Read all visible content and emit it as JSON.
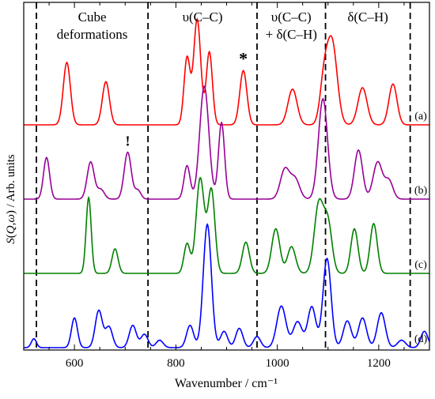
{
  "chart_data": {
    "type": "line",
    "title": "",
    "xlabel": "Wavenumber / cm⁻¹",
    "ylabel": "S(Q,ω) / Arb. units",
    "xlim": [
      500,
      1300
    ],
    "xticks": [
      600,
      800,
      1000,
      1200
    ],
    "xtick_labels": [
      "600",
      "800",
      "1000",
      "1200"
    ],
    "grid": false,
    "legend": "none",
    "region_boundaries_cm1": [
      525,
      745,
      960,
      1095,
      1262
    ],
    "region_labels": [
      {
        "lines": [
          "Cube",
          "deformations"
        ]
      },
      {
        "lines": [
          "υ(C–C)"
        ]
      },
      {
        "lines": [
          "υ(C–C)",
          "+ δ(C–H)"
        ]
      },
      {
        "lines": [
          "δ(C–H)"
        ]
      }
    ],
    "annotations": [
      {
        "text": "*",
        "x": 933,
        "series_index": 0
      },
      {
        "text": "!",
        "x": 705,
        "series_index": 1
      }
    ],
    "series": [
      {
        "tag": "(a)",
        "color": "#ff0000",
        "offset": 3,
        "peaks": [
          [
            585,
            0.84,
            7
          ],
          [
            662,
            0.58,
            7
          ],
          [
            822,
            0.9,
            6
          ],
          [
            842,
            1.42,
            7
          ],
          [
            866,
            0.98,
            6
          ],
          [
            933,
            0.73,
            7
          ],
          [
            1030,
            0.48,
            9
          ],
          [
            1092,
            0.55,
            8
          ],
          [
            1108,
            1.1,
            10
          ],
          [
            1168,
            0.5,
            9
          ],
          [
            1228,
            0.55,
            8
          ]
        ]
      },
      {
        "tag": "(b)",
        "color": "#990099",
        "offset": 2,
        "peaks": [
          [
            545,
            0.56,
            6
          ],
          [
            632,
            0.5,
            7
          ],
          [
            652,
            0.13,
            7
          ],
          [
            705,
            0.63,
            7
          ],
          [
            725,
            0.12,
            6
          ],
          [
            822,
            0.45,
            6
          ],
          [
            856,
            1.52,
            9
          ],
          [
            890,
            1.03,
            6
          ],
          [
            1015,
            0.4,
            9
          ],
          [
            1035,
            0.27,
            9
          ],
          [
            1090,
            1.35,
            9
          ],
          [
            1160,
            0.66,
            8
          ],
          [
            1198,
            0.5,
            9
          ],
          [
            1220,
            0.25,
            8
          ]
        ]
      },
      {
        "tag": "(c)",
        "color": "#008000",
        "offset": 1,
        "peaks": [
          [
            628,
            1.02,
            5
          ],
          [
            680,
            0.33,
            6
          ],
          [
            822,
            0.4,
            6
          ],
          [
            848,
            1.28,
            8
          ],
          [
            870,
            1.12,
            7
          ],
          [
            938,
            0.42,
            7
          ],
          [
            997,
            0.6,
            8
          ],
          [
            1028,
            0.36,
            8
          ],
          [
            1082,
            0.94,
            9
          ],
          [
            1100,
            0.65,
            8
          ],
          [
            1152,
            0.6,
            7
          ],
          [
            1190,
            0.67,
            7
          ]
        ]
      },
      {
        "tag": "(d)",
        "color": "#0000ff",
        "offset": 0,
        "peaks": [
          [
            520,
            0.12,
            5
          ],
          [
            600,
            0.4,
            6
          ],
          [
            648,
            0.5,
            7
          ],
          [
            668,
            0.28,
            7
          ],
          [
            715,
            0.3,
            7
          ],
          [
            738,
            0.18,
            7
          ],
          [
            768,
            0.1,
            7
          ],
          [
            828,
            0.3,
            7
          ],
          [
            862,
            1.66,
            8
          ],
          [
            895,
            0.22,
            7
          ],
          [
            925,
            0.26,
            7
          ],
          [
            960,
            0.15,
            7
          ],
          [
            1008,
            0.56,
            9
          ],
          [
            1040,
            0.35,
            9
          ],
          [
            1068,
            0.55,
            8
          ],
          [
            1098,
            1.2,
            8
          ],
          [
            1138,
            0.36,
            8
          ],
          [
            1168,
            0.4,
            8
          ],
          [
            1205,
            0.47,
            8
          ],
          [
            1245,
            0.1,
            8
          ],
          [
            1290,
            0.22,
            7
          ]
        ]
      }
    ]
  }
}
